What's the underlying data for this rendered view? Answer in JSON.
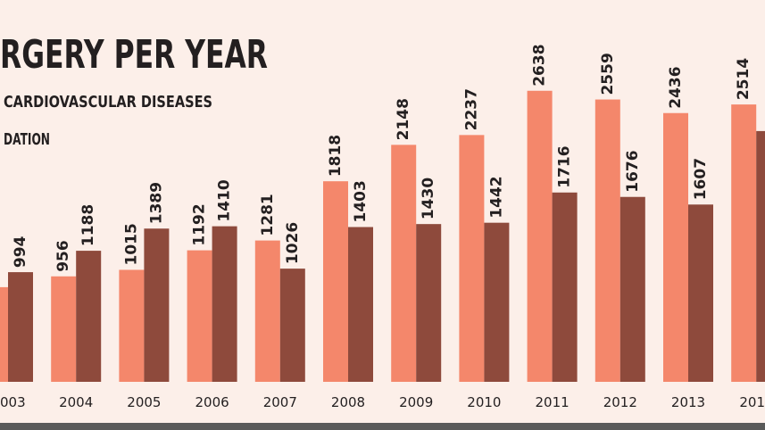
{
  "chart_data": {
    "type": "bar",
    "title": "RGERY PER YEAR",
    "subtitle": [
      "CARDIOVASCULAR DISEASES",
      "DATION"
    ],
    "categories": [
      "003",
      "2004",
      "2005",
      "2006",
      "2007",
      "2008",
      "2009",
      "2010",
      "2011",
      "2012",
      "2013",
      "201"
    ],
    "series": [
      {
        "color": "#f4876b",
        "values": [
          858,
          956,
          1015,
          1192,
          1281,
          1818,
          2148,
          2237,
          2638,
          2559,
          2436,
          2514
        ]
      },
      {
        "color": "#8e4a3c",
        "values": [
          994,
          1188,
          1389,
          1410,
          1026,
          1403,
          1430,
          1442,
          1716,
          1676,
          1607,
          2273
        ]
      }
    ],
    "ylim": [
      0,
      3000
    ]
  }
}
